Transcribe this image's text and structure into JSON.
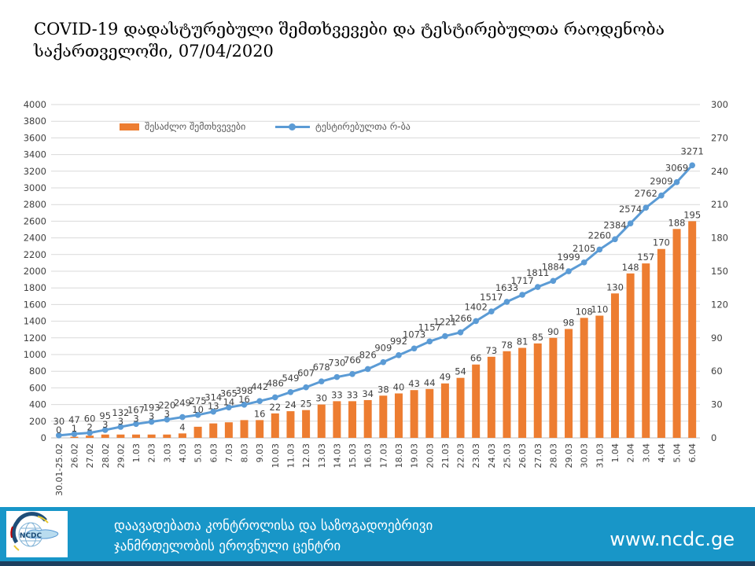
{
  "title": {
    "line1": "COVID-19 დადასტურებული შემთხვევები და ტესტირებულთა რაოდენობა",
    "line2": "საქართველოში, 07/04/2020"
  },
  "chart_data": {
    "type": "bar+line combo",
    "categories": [
      "30.01-25.02",
      "26.02",
      "27.02",
      "28.02",
      "29.02",
      "1.03",
      "2.03",
      "3.03",
      "4.03",
      "5.03",
      "6.03",
      "7.03",
      "8.03",
      "9.03",
      "10.03",
      "11.03",
      "12.03",
      "13.03",
      "14.03",
      "15.03",
      "16.03",
      "17.03",
      "18.03",
      "19.03",
      "20.03",
      "21.03",
      "22.03",
      "23.03",
      "24.03",
      "25.03",
      "26.03",
      "27.03",
      "28.03",
      "29.03",
      "30.03",
      "31.03",
      "1.04",
      "2.04",
      "3.04",
      "4.04",
      "5.04",
      "6.04"
    ],
    "series": [
      {
        "name": "შესაძლო შემთხვევები",
        "type": "bar",
        "axis": "right",
        "color": "#ED7D31",
        "values": [
          0,
          1,
          2,
          3,
          3,
          3,
          3,
          3,
          4,
          10,
          13,
          14,
          16,
          16,
          22,
          24,
          25,
          30,
          33,
          33,
          34,
          38,
          40,
          43,
          44,
          49,
          54,
          66,
          73,
          78,
          81,
          85,
          90,
          98,
          108,
          110,
          130,
          148,
          157,
          170,
          188,
          195
        ]
      },
      {
        "name": "ტესტირებულთა რ-ბა",
        "type": "line",
        "axis": "left",
        "color": "#5B9BD5",
        "values": [
          30,
          47,
          60,
          95,
          132,
          167,
          193,
          220,
          249,
          275,
          314,
          365,
          398,
          442,
          486,
          549,
          607,
          678,
          730,
          766,
          826,
          909,
          992,
          1073,
          1157,
          1221,
          1266,
          1402,
          1517,
          1633,
          1717,
          1811,
          1884,
          1999,
          2105,
          2260,
          2384,
          2574,
          2762,
          2909,
          3069,
          3271
        ]
      }
    ],
    "left_axis": {
      "min": 0,
      "max": 4000,
      "step": 200,
      "ticks": [
        0,
        200,
        400,
        600,
        800,
        1000,
        1200,
        1400,
        1600,
        1800,
        2000,
        2200,
        2400,
        2600,
        2800,
        3000,
        3200,
        3400,
        3600,
        3800,
        4000
      ]
    },
    "right_axis": {
      "min": 0,
      "max": 300,
      "step": 30,
      "ticks": [
        0,
        30,
        60,
        90,
        120,
        150,
        180,
        210,
        240,
        270,
        300
      ]
    },
    "grid": true,
    "legend_position": "top-left",
    "data_labels": true
  },
  "colors": {
    "bar": "#ED7D31",
    "line": "#5B9BD5",
    "grid": "#D9D9D9",
    "axis_line": "#BFBFBF",
    "axis_text": "#404040",
    "label_text": "#3f3f3f",
    "legend_text": "#595959",
    "footer_band": "#1896C8",
    "footer_strip": "#1d3e5e",
    "logo_dark": "#1f4e79"
  },
  "footer": {
    "org_line1": "დაავადებათა კონტროლისა და საზოგადოებრივი",
    "org_line2": "ჯანმრთელობის ეროვნული ცენტრი",
    "website": "www.ncdc.ge",
    "logo_text": "NCDC"
  }
}
